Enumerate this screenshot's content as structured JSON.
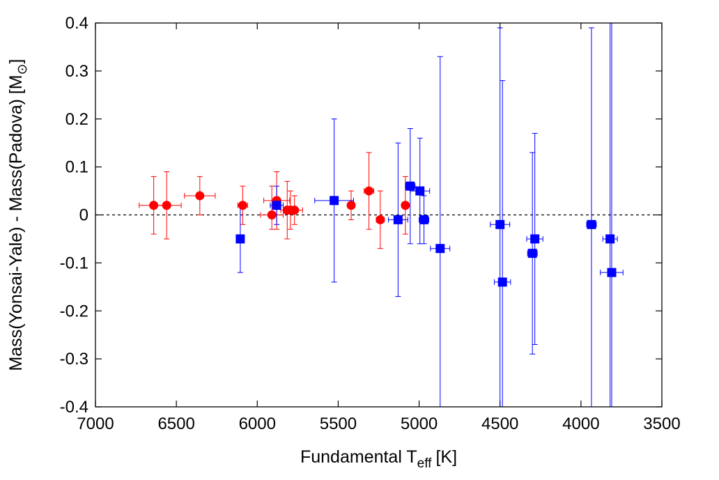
{
  "chart_data": {
    "type": "scatter",
    "title": "",
    "xlabel": {
      "main": "Fundamental T",
      "sub": "eff",
      "unit": "[K]"
    },
    "ylabel": {
      "main": "Mass(Yonsai-Yale) - Mass(Padova) [M",
      "sub": "⊙",
      "tail": "]"
    },
    "xlim": [
      7000,
      3500
    ],
    "ylim": [
      -0.4,
      0.4
    ],
    "xticks": [
      "7000",
      "6500",
      "6000",
      "5500",
      "5000",
      "4500",
      "4000",
      "3500"
    ],
    "yticks": [
      "0.4",
      "0.3",
      "0.2",
      "0.1",
      "0",
      "-0.1",
      "-0.2",
      "-0.3",
      "-0.4"
    ],
    "x_reversed": true,
    "grid": false,
    "legend": "none",
    "reference_line": {
      "y": 0,
      "style": "dashed",
      "color": "#000000"
    },
    "series": [
      {
        "marker": "circle",
        "color": "#ff0000",
        "points": [
          {
            "x": 6640,
            "y": 0.02,
            "xerr": 90,
            "yerr_lo": 0.06,
            "yerr_hi": 0.06
          },
          {
            "x": 6560,
            "y": 0.02,
            "xerr": 90,
            "yerr_lo": 0.07,
            "yerr_hi": 0.07
          },
          {
            "x": 6355,
            "y": 0.04,
            "xerr": 95,
            "yerr_lo": 0.04,
            "yerr_hi": 0.04
          },
          {
            "x": 6090,
            "y": 0.02,
            "xerr": 30,
            "yerr_lo": 0.04,
            "yerr_hi": 0.04
          },
          {
            "x": 5910,
            "y": 0.0,
            "xerr": 70,
            "yerr_lo": 0.03,
            "yerr_hi": 0.06
          },
          {
            "x": 5880,
            "y": 0.03,
            "xerr": 80,
            "yerr_lo": 0.06,
            "yerr_hi": 0.06
          },
          {
            "x": 5815,
            "y": 0.01,
            "xerr": 40,
            "yerr_lo": 0.06,
            "yerr_hi": 0.06
          },
          {
            "x": 5795,
            "y": 0.01,
            "xerr": 40,
            "yerr_lo": 0.04,
            "yerr_hi": 0.04
          },
          {
            "x": 5770,
            "y": 0.01,
            "xerr": 50,
            "yerr_lo": 0.03,
            "yerr_hi": 0.03
          },
          {
            "x": 5420,
            "y": 0.02,
            "xerr": 10,
            "yerr_lo": 0.03,
            "yerr_hi": 0.03
          },
          {
            "x": 5310,
            "y": 0.05,
            "xerr": 30,
            "yerr_lo": 0.08,
            "yerr_hi": 0.08
          },
          {
            "x": 5240,
            "y": -0.01,
            "xerr": 25,
            "yerr_lo": 0.06,
            "yerr_hi": 0.06
          },
          {
            "x": 5085,
            "y": 0.02,
            "xerr": 20,
            "yerr_lo": 0.06,
            "yerr_hi": 0.06
          }
        ]
      },
      {
        "marker": "square",
        "color": "#0000ff",
        "points": [
          {
            "x": 6105,
            "y": -0.05,
            "xerr": 10,
            "yerr_lo": 0.07,
            "yerr_hi": 0.07
          },
          {
            "x": 5880,
            "y": 0.02,
            "xerr": 40,
            "yerr_lo": 0.04,
            "yerr_hi": 0.04
          },
          {
            "x": 5525,
            "y": 0.03,
            "xerr": 120,
            "yerr_lo": 0.17,
            "yerr_hi": 0.17
          },
          {
            "x": 5130,
            "y": -0.01,
            "xerr": 60,
            "yerr_lo": 0.16,
            "yerr_hi": 0.16
          },
          {
            "x": 5055,
            "y": 0.06,
            "xerr": 30,
            "yerr_lo": 0.12,
            "yerr_hi": 0.12
          },
          {
            "x": 4995,
            "y": 0.05,
            "xerr": 60,
            "yerr_lo": 0.11,
            "yerr_hi": 0.11
          },
          {
            "x": 4970,
            "y": -0.01,
            "xerr": 30,
            "yerr_lo": 0.05,
            "yerr_hi": 0.05
          },
          {
            "x": 4870,
            "y": -0.07,
            "xerr": 60,
            "yerr_lo": 0.4,
            "yerr_hi": 0.4
          },
          {
            "x": 4500,
            "y": -0.02,
            "xerr": 60,
            "yerr_lo": 0.41,
            "yerr_hi": 0.41
          },
          {
            "x": 4485,
            "y": -0.14,
            "xerr": 50,
            "yerr_lo": 0.42,
            "yerr_hi": 0.42
          },
          {
            "x": 4300,
            "y": -0.08,
            "xerr": 30,
            "yerr_lo": 0.21,
            "yerr_hi": 0.21
          },
          {
            "x": 4285,
            "y": -0.05,
            "xerr": 50,
            "yerr_lo": 0.22,
            "yerr_hi": 0.22
          },
          {
            "x": 3935,
            "y": -0.02,
            "xerr": 30,
            "yerr_lo": 0.41,
            "yerr_hi": 0.41
          },
          {
            "x": 3820,
            "y": -0.05,
            "xerr": 45,
            "yerr_lo": 0.46,
            "yerr_hi": 0.46
          },
          {
            "x": 3810,
            "y": -0.12,
            "xerr": 70,
            "yerr_lo": 0.52,
            "yerr_hi": 0.52
          }
        ]
      }
    ]
  }
}
